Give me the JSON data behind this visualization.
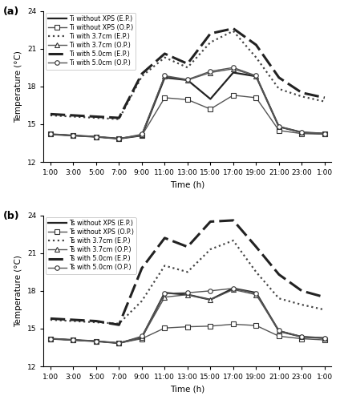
{
  "time_labels": [
    "1:00",
    "3:00",
    "5:00",
    "7:00",
    "9:00",
    "11:00",
    "13:00",
    "15:00",
    "17:00",
    "19:00",
    "21:00",
    "23:00",
    "1:00"
  ],
  "subplot_a": {
    "title_label": "(a)",
    "ylabel": "Temperature (°C)",
    "xlabel": "Time (h)",
    "ylim": [
      12,
      24
    ],
    "yticks": [
      12,
      15,
      18,
      21,
      24
    ],
    "legend_labels": [
      "Ti without XPS (E.P.)",
      "Ti without XPS (O.P.)",
      "Ti with 3.7cm (E.P.)",
      "Ti with 3.7cm (O.P.)",
      "Ti with 5.0cm (E.P.)",
      "Ti with 5.0cm (O.P.)"
    ],
    "series": {
      "EP_noXPS": [
        14.2,
        14.1,
        14.0,
        13.85,
        14.1,
        18.7,
        18.5,
        17.0,
        19.1,
        18.8,
        14.8,
        14.35,
        14.25
      ],
      "OP_noXPS": [
        14.2,
        14.1,
        14.0,
        13.85,
        14.1,
        17.1,
        16.95,
        16.2,
        17.3,
        17.1,
        14.5,
        14.25,
        14.2
      ],
      "EP_37cm": [
        15.7,
        15.6,
        15.5,
        15.4,
        18.8,
        20.3,
        19.5,
        21.5,
        22.4,
        20.3,
        17.8,
        17.2,
        16.8
      ],
      "OP_37cm": [
        14.2,
        14.1,
        14.0,
        13.85,
        14.15,
        18.8,
        18.5,
        19.1,
        19.4,
        18.8,
        14.8,
        14.35,
        14.25
      ],
      "EP_50cm": [
        15.8,
        15.7,
        15.6,
        15.5,
        19.0,
        20.6,
        19.8,
        22.2,
        22.6,
        21.3,
        18.7,
        17.5,
        17.1
      ],
      "OP_50cm": [
        14.2,
        14.1,
        14.0,
        13.85,
        14.2,
        18.85,
        18.55,
        19.2,
        19.5,
        18.85,
        14.8,
        14.35,
        14.25
      ]
    }
  },
  "subplot_b": {
    "title_label": "(b)",
    "ylabel": "Temperature (°C)",
    "xlabel": "Time (h)",
    "ylim": [
      12,
      24
    ],
    "yticks": [
      12,
      15,
      18,
      21,
      24
    ],
    "legend_labels": [
      "Ts without XPS (E.P.)",
      "Ts without XPS (O.P.)",
      "Ts with 3.7cm (E.P.)",
      "Ts with 3.7cm (O.P.)",
      "Ts with 5.0cm (E.P.)",
      "Ts with 5.0cm (O.P.)"
    ],
    "series": {
      "EP_noXPS": [
        14.2,
        14.1,
        14.0,
        13.85,
        14.3,
        17.85,
        17.7,
        17.3,
        18.2,
        17.85,
        14.8,
        14.35,
        14.25
      ],
      "OP_noXPS": [
        14.2,
        14.1,
        14.0,
        13.85,
        14.2,
        15.05,
        15.15,
        15.2,
        15.35,
        15.25,
        14.4,
        14.2,
        14.1
      ],
      "EP_37cm": [
        15.7,
        15.6,
        15.5,
        15.4,
        17.2,
        20.0,
        19.5,
        21.3,
        22.0,
        19.5,
        17.4,
        16.9,
        16.5
      ],
      "OP_37cm": [
        14.2,
        14.1,
        14.0,
        13.85,
        14.3,
        17.5,
        17.7,
        17.3,
        18.1,
        17.7,
        14.8,
        14.35,
        14.25
      ],
      "EP_50cm": [
        15.8,
        15.7,
        15.6,
        15.3,
        19.8,
        22.2,
        21.5,
        23.5,
        23.6,
        21.5,
        19.3,
        18.0,
        17.5
      ],
      "OP_50cm": [
        14.2,
        14.1,
        14.0,
        13.85,
        14.4,
        17.8,
        17.85,
        18.0,
        18.2,
        17.8,
        14.85,
        14.35,
        14.25
      ]
    }
  },
  "line_styles": {
    "EP_noXPS": {
      "color": "#222222",
      "linestyle": "-",
      "marker": null,
      "linewidth": 1.6,
      "dashes": null
    },
    "OP_noXPS": {
      "color": "#555555",
      "linestyle": "-",
      "marker": "s",
      "linewidth": 1.0,
      "dashes": null
    },
    "EP_37cm": {
      "color": "#444444",
      "linestyle": ":",
      "marker": null,
      "linewidth": 1.6,
      "dashes": null
    },
    "OP_37cm": {
      "color": "#555555",
      "linestyle": "-",
      "marker": "^",
      "linewidth": 1.0,
      "dashes": null
    },
    "EP_50cm": {
      "color": "#222222",
      "linestyle": "--",
      "marker": null,
      "linewidth": 2.2,
      "dashes": [
        6,
        2
      ]
    },
    "OP_50cm": {
      "color": "#555555",
      "linestyle": "-",
      "marker": "o",
      "linewidth": 1.0,
      "dashes": null
    }
  }
}
